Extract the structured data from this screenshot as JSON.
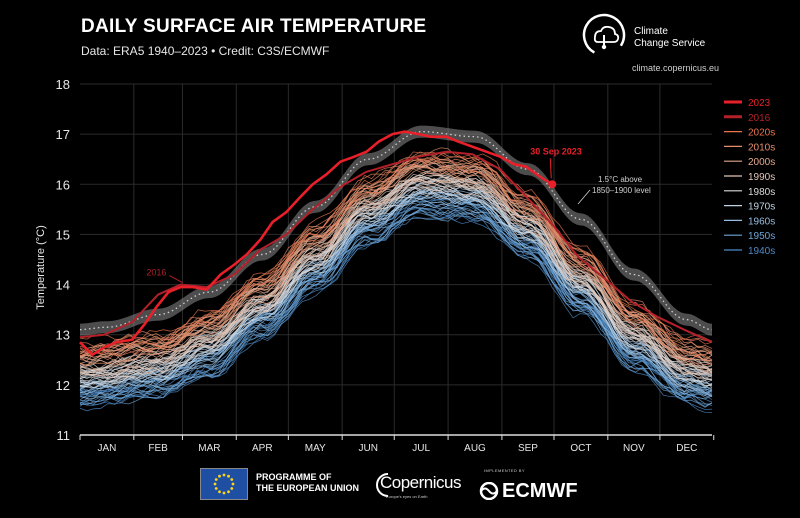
{
  "header": {
    "title": "DAILY SURFACE AIR TEMPERATURE",
    "subtitle": "Data: ERA5 1940–2023 • Credit: C3S/ECMWF"
  },
  "brand": {
    "name_line1": "Climate",
    "name_line2": "Change Service",
    "url": "climate.copernicus.eu"
  },
  "footer": {
    "programme_line1": "PROGRAMME OF",
    "programme_line2": "THE EUROPEAN UNION",
    "copernicus": "Copernicus",
    "copernicus_tagline": "Europe's eyes on Earth",
    "implemented_by": "IMPLEMENTED BY",
    "ecmwf": "ECMWF"
  },
  "chart_data": {
    "type": "line",
    "title": "DAILY SURFACE AIR TEMPERATURE",
    "subtitle": "Data: ERA5 1940–2023 • Credit: C3S/ECMWF",
    "ylabel": "Temperature (°C)",
    "xlabel": "",
    "ylim": [
      11,
      18
    ],
    "yticks": [
      11,
      12,
      13,
      14,
      15,
      16,
      17,
      18
    ],
    "x_categories": [
      "JAN",
      "FEB",
      "MAR",
      "APR",
      "MAY",
      "JUN",
      "JUL",
      "AUG",
      "SEP",
      "OCT",
      "NOV",
      "DEC"
    ],
    "grid": true,
    "legend_position": "right",
    "legend": [
      {
        "label": "2023",
        "color": "#e8202a",
        "bold": true
      },
      {
        "label": "2016",
        "color": "#b3202a",
        "bold": true
      },
      {
        "label": "2020s",
        "color": "#e9744e"
      },
      {
        "label": "2010s",
        "color": "#e58d6a"
      },
      {
        "label": "2000s",
        "color": "#e3a98e"
      },
      {
        "label": "1990s",
        "color": "#e3c6b7"
      },
      {
        "label": "1980s",
        "color": "#dcdcdc"
      },
      {
        "label": "1970s",
        "color": "#bed2e4"
      },
      {
        "label": "1960s",
        "color": "#97bde0"
      },
      {
        "label": "1950s",
        "color": "#6fa5d6"
      },
      {
        "label": "1940s",
        "color": "#4d8bc8"
      }
    ],
    "threshold_band": {
      "label_line1": "1.5°C above",
      "label_line2": "1850–1900 level",
      "color": "#8c8c8c",
      "months_mid": [
        13.15,
        13.4,
        13.85,
        14.6,
        15.55,
        16.5,
        17.05,
        16.95,
        16.3,
        15.3,
        14.2,
        13.3
      ],
      "year_end": 13.1
    },
    "decade_envelopes": [
      {
        "decade": "1940s",
        "months_mid": [
          11.7,
          11.85,
          12.25,
          13.0,
          13.95,
          14.9,
          15.45,
          15.35,
          14.6,
          13.5,
          12.4,
          11.75
        ],
        "year_end": 11.65
      },
      {
        "decade": "1980s",
        "months_mid": [
          12.2,
          12.35,
          12.8,
          13.55,
          14.5,
          15.45,
          16.0,
          15.9,
          15.15,
          14.05,
          12.95,
          12.25
        ],
        "year_end": 12.15
      },
      {
        "decade": "2020s",
        "months_mid": [
          12.75,
          12.9,
          13.35,
          14.1,
          15.05,
          16.0,
          16.55,
          16.45,
          15.7,
          14.6,
          13.5,
          12.8
        ],
        "year_end": 12.7
      }
    ],
    "series": [
      {
        "name": "2016",
        "color": "#b3202a",
        "days": [
          1,
          15,
          31,
          46,
          59,
          74,
          90,
          105,
          120,
          135,
          151,
          166,
          181,
          196,
          212,
          227,
          243,
          258,
          273,
          288,
          304,
          319,
          334,
          349,
          365
        ],
        "values": [
          12.95,
          13.0,
          13.25,
          13.8,
          14.0,
          13.95,
          14.2,
          14.7,
          15.0,
          15.5,
          15.95,
          16.25,
          16.4,
          16.55,
          16.65,
          16.6,
          16.3,
          15.75,
          15.2,
          14.55,
          14.1,
          13.65,
          13.35,
          13.1,
          12.85
        ],
        "annotation": "2016",
        "annotation_day": 45,
        "annotation_value": 14.1
      },
      {
        "name": "2023",
        "color": "#e8202a",
        "days": [
          1,
          8,
          15,
          22,
          31,
          38,
          45,
          52,
          59,
          66,
          74,
          82,
          90,
          97,
          105,
          112,
          120,
          128,
          135,
          143,
          151,
          159,
          166,
          173,
          181,
          188,
          196,
          203,
          212,
          219,
          227,
          235,
          243,
          251,
          258,
          266,
          273
        ],
        "values": [
          12.85,
          12.6,
          12.75,
          12.85,
          12.9,
          13.2,
          13.55,
          13.85,
          13.95,
          13.95,
          13.9,
          14.2,
          14.4,
          14.6,
          14.9,
          15.25,
          15.45,
          15.75,
          16.0,
          16.2,
          16.45,
          16.55,
          16.65,
          16.85,
          17.0,
          17.05,
          17.0,
          16.95,
          16.95,
          16.85,
          16.75,
          16.65,
          16.55,
          16.4,
          16.35,
          16.15,
          16.0
        ],
        "annotation": "30 Sep 2023",
        "annotation_day": 273,
        "annotation_value": 16.0
      }
    ]
  }
}
